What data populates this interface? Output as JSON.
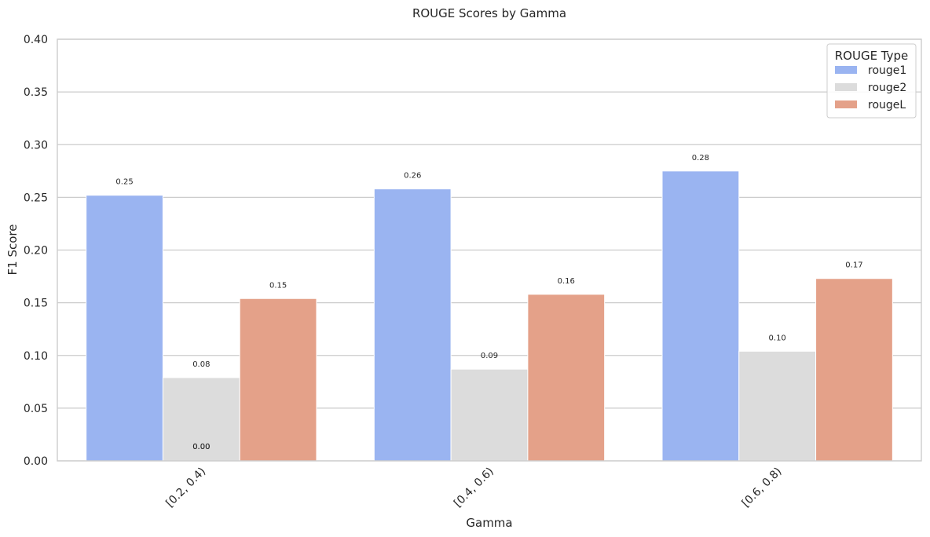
{
  "chart_data": {
    "type": "bar",
    "title": "ROUGE Scores by Gamma",
    "xlabel": "Gamma",
    "ylabel": "F1 Score",
    "ylim": [
      0,
      0.4
    ],
    "yticks": [
      0.0,
      0.05,
      0.1,
      0.15,
      0.2,
      0.25,
      0.3,
      0.35,
      0.4
    ],
    "ytick_labels": [
      "0.00",
      "0.05",
      "0.10",
      "0.15",
      "0.20",
      "0.25",
      "0.30",
      "0.35",
      "0.40"
    ],
    "categories": [
      "[0.2, 0.4)",
      "[0.4, 0.6)",
      "[0.6, 0.8)"
    ],
    "series": [
      {
        "name": "rouge1",
        "color": "#9ab4f1",
        "values": [
          0.252,
          0.258,
          0.275
        ],
        "labels": [
          "0.25",
          "0.26",
          "0.28"
        ]
      },
      {
        "name": "rouge2",
        "color": "#dcdcdc",
        "values": [
          0.079,
          0.087,
          0.104
        ],
        "labels": [
          "0.08",
          "0.09",
          "0.10"
        ]
      },
      {
        "name": "rougeL",
        "color": "#e4a189",
        "values": [
          0.154,
          0.158,
          0.173
        ],
        "labels": [
          "0.15",
          "0.16",
          "0.17"
        ]
      }
    ],
    "extra_annotations": [
      {
        "text": "0.00",
        "category_index": 0,
        "value": 0.0
      },
      {
        "text": "0.00",
        "category_index": 0,
        "value": 0.0
      }
    ],
    "legend": {
      "title": "ROUGE Type",
      "placement": "top-right"
    },
    "grid": true
  }
}
